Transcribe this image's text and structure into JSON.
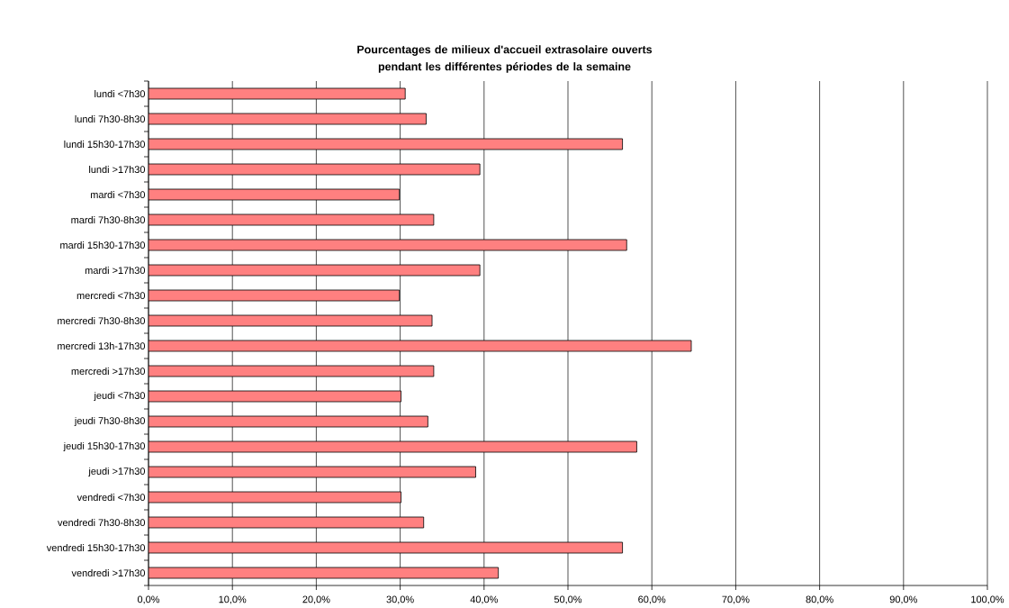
{
  "chart_data": {
    "type": "bar",
    "orientation": "horizontal",
    "title": "Pourcentages de milieux d'accueil extrasolaire ouverts pendant les différentes périodes de la semaine",
    "categories": [
      "lundi <7h30",
      "lundi 7h30-8h30",
      "lundi 15h30-17h30",
      "lundi >17h30",
      "mardi <7h30",
      "mardi 7h30-8h30",
      "mardi 15h30-17h30",
      "mardi >17h30",
      "mercredi <7h30",
      "mercredi 7h30-8h30",
      "mercredi 13h-17h30",
      "mercredi >17h30",
      "jeudi <7h30",
      "jeudi 7h30-8h30",
      "jeudi 15h30-17h30",
      "jeudi >17h30",
      "vendredi <7h30",
      "vendredi 7h30-8h30",
      "vendredi 15h30-17h30",
      "vendredi >17h30"
    ],
    "values": [
      30.6,
      33.1,
      56.5,
      39.5,
      29.9,
      34.0,
      57.0,
      39.5,
      29.9,
      33.8,
      64.7,
      34.0,
      30.1,
      33.3,
      58.2,
      39.0,
      30.1,
      32.8,
      56.5,
      41.7
    ],
    "color": "#ff8080",
    "xlim": [
      0,
      100
    ],
    "xticks": [
      {
        "value": 0,
        "label": "0,0%"
      },
      {
        "value": 10,
        "label": "10,0%"
      },
      {
        "value": 20,
        "label": "20,0%"
      },
      {
        "value": 30,
        "label": "30,0%"
      },
      {
        "value": 40,
        "label": "40,0%"
      },
      {
        "value": 50,
        "label": "50,0%"
      },
      {
        "value": 60,
        "label": "60,0%"
      },
      {
        "value": 70,
        "label": "70,0%"
      },
      {
        "value": 80,
        "label": "80,0%"
      },
      {
        "value": 90,
        "label": "90,0%"
      },
      {
        "value": 100,
        "label": "100,0%"
      }
    ],
    "grid": "x"
  }
}
